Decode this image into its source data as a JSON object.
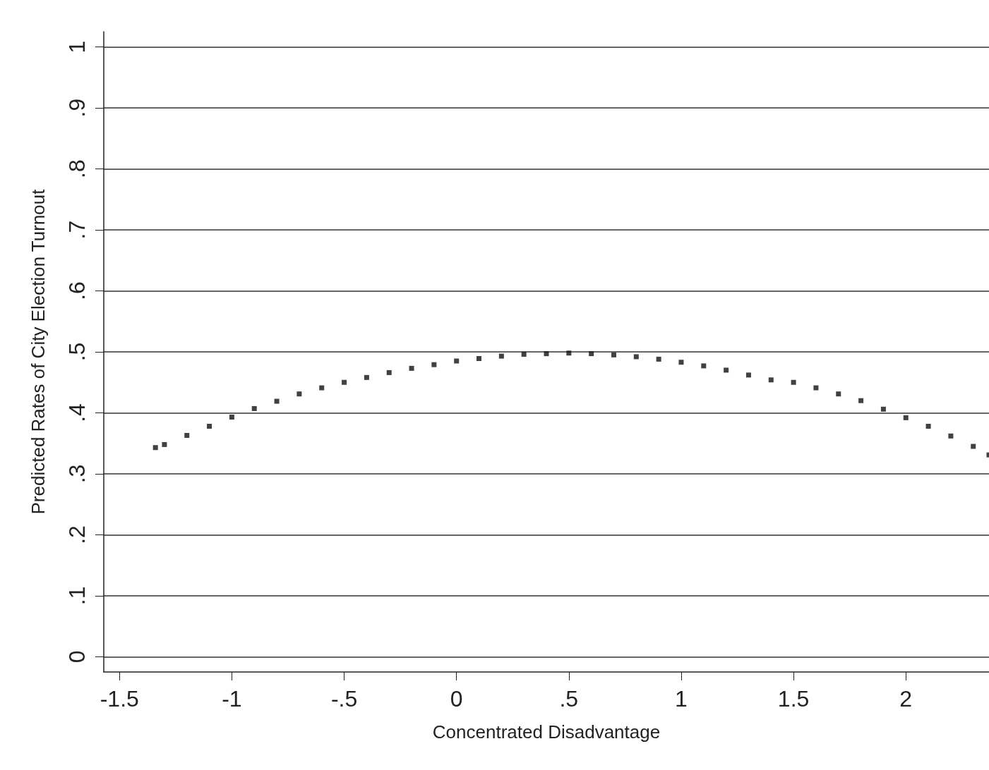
{
  "chart_data": {
    "type": "scatter",
    "xlabel": "Concentrated Disadvantage",
    "ylabel": "Predicted Rates of City Election Turnout",
    "x": [
      -1.34,
      -1.3,
      -1.2,
      -1.1,
      -1.0,
      -0.9,
      -0.8,
      -0.7,
      -0.6,
      -0.5,
      -0.4,
      -0.3,
      -0.2,
      -0.1,
      0,
      0.1,
      0.2,
      0.3,
      0.4,
      0.5,
      0.6,
      0.7,
      0.8,
      0.9,
      1.0,
      1.1,
      1.2,
      1.3,
      1.4,
      1.5,
      1.6,
      1.7,
      1.8,
      1.9,
      2.0,
      2.1,
      2.2,
      2.3,
      2.37
    ],
    "series": [
      {
        "color": "#111111",
        "values": [
          0.343,
          0.348,
          0.363,
          0.378,
          0.393,
          0.407,
          0.419,
          0.431,
          0.441,
          0.45,
          0.458,
          0.466,
          0.473,
          0.479,
          0.485,
          0.489,
          0.493,
          0.496,
          0.497,
          0.498,
          0.497,
          0.495,
          0.492,
          0.488,
          0.483,
          0.477,
          0.47,
          0.462,
          0.454,
          0.45,
          0.441,
          0.431,
          0.42,
          0.406,
          0.392,
          0.378,
          0.362,
          0.345,
          0.331
        ]
      }
    ],
    "xlim": [
      -1.57,
      2.37
    ],
    "xticks": [
      -1.5,
      -1,
      {
        "value": -0.5,
        "label": "-.5"
      },
      0,
      {
        "value": 0.5,
        "label": ".5"
      },
      1,
      1.5,
      2
    ],
    "ylim": [
      -0.025,
      1.025
    ],
    "yticks": [
      0,
      {
        "value": 0.1,
        "label": ".1"
      },
      {
        "value": 0.2,
        "label": ".2"
      },
      {
        "value": 0.3,
        "label": ".3"
      },
      {
        "value": 0.4,
        "label": ".4"
      },
      {
        "value": 0.5,
        "label": ".5"
      },
      {
        "value": 0.6,
        "label": ".6"
      },
      {
        "value": 0.7,
        "label": ".7"
      },
      {
        "value": 0.8,
        "label": ".8"
      },
      {
        "value": 0.9,
        "label": ".9"
      },
      1
    ],
    "grid": "y",
    "marker": "square"
  }
}
